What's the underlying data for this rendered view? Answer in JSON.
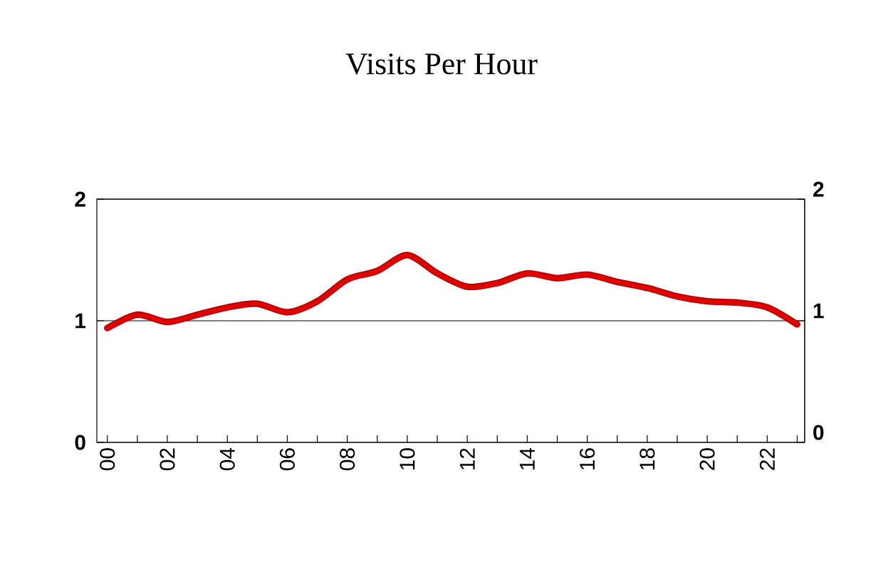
{
  "chart_data": {
    "type": "line",
    "title": "Visits Per Hour",
    "categories": [
      "00",
      null,
      "02",
      null,
      "04",
      null,
      "06",
      null,
      "08",
      null,
      "10",
      null,
      "12",
      null,
      "14",
      null,
      "16",
      null,
      "18",
      null,
      "20",
      null,
      "22",
      null
    ],
    "series": [
      {
        "color": "#e00000",
        "values": [
          0.94,
          1.05,
          0.99,
          1.05,
          1.11,
          1.14,
          1.07,
          1.16,
          1.34,
          1.41,
          1.54,
          1.39,
          1.28,
          1.31,
          1.39,
          1.35,
          1.38,
          1.32,
          1.27,
          1.2,
          1.16,
          1.15,
          1.11,
          0.97
        ]
      }
    ],
    "ylim": [
      0,
      2
    ],
    "yticks": [
      0,
      1,
      2
    ],
    "y2lim": [
      0,
      2
    ],
    "y2ticks": [
      0,
      1,
      2
    ],
    "grid": "y",
    "marker": "none",
    "line_style": "solid"
  }
}
